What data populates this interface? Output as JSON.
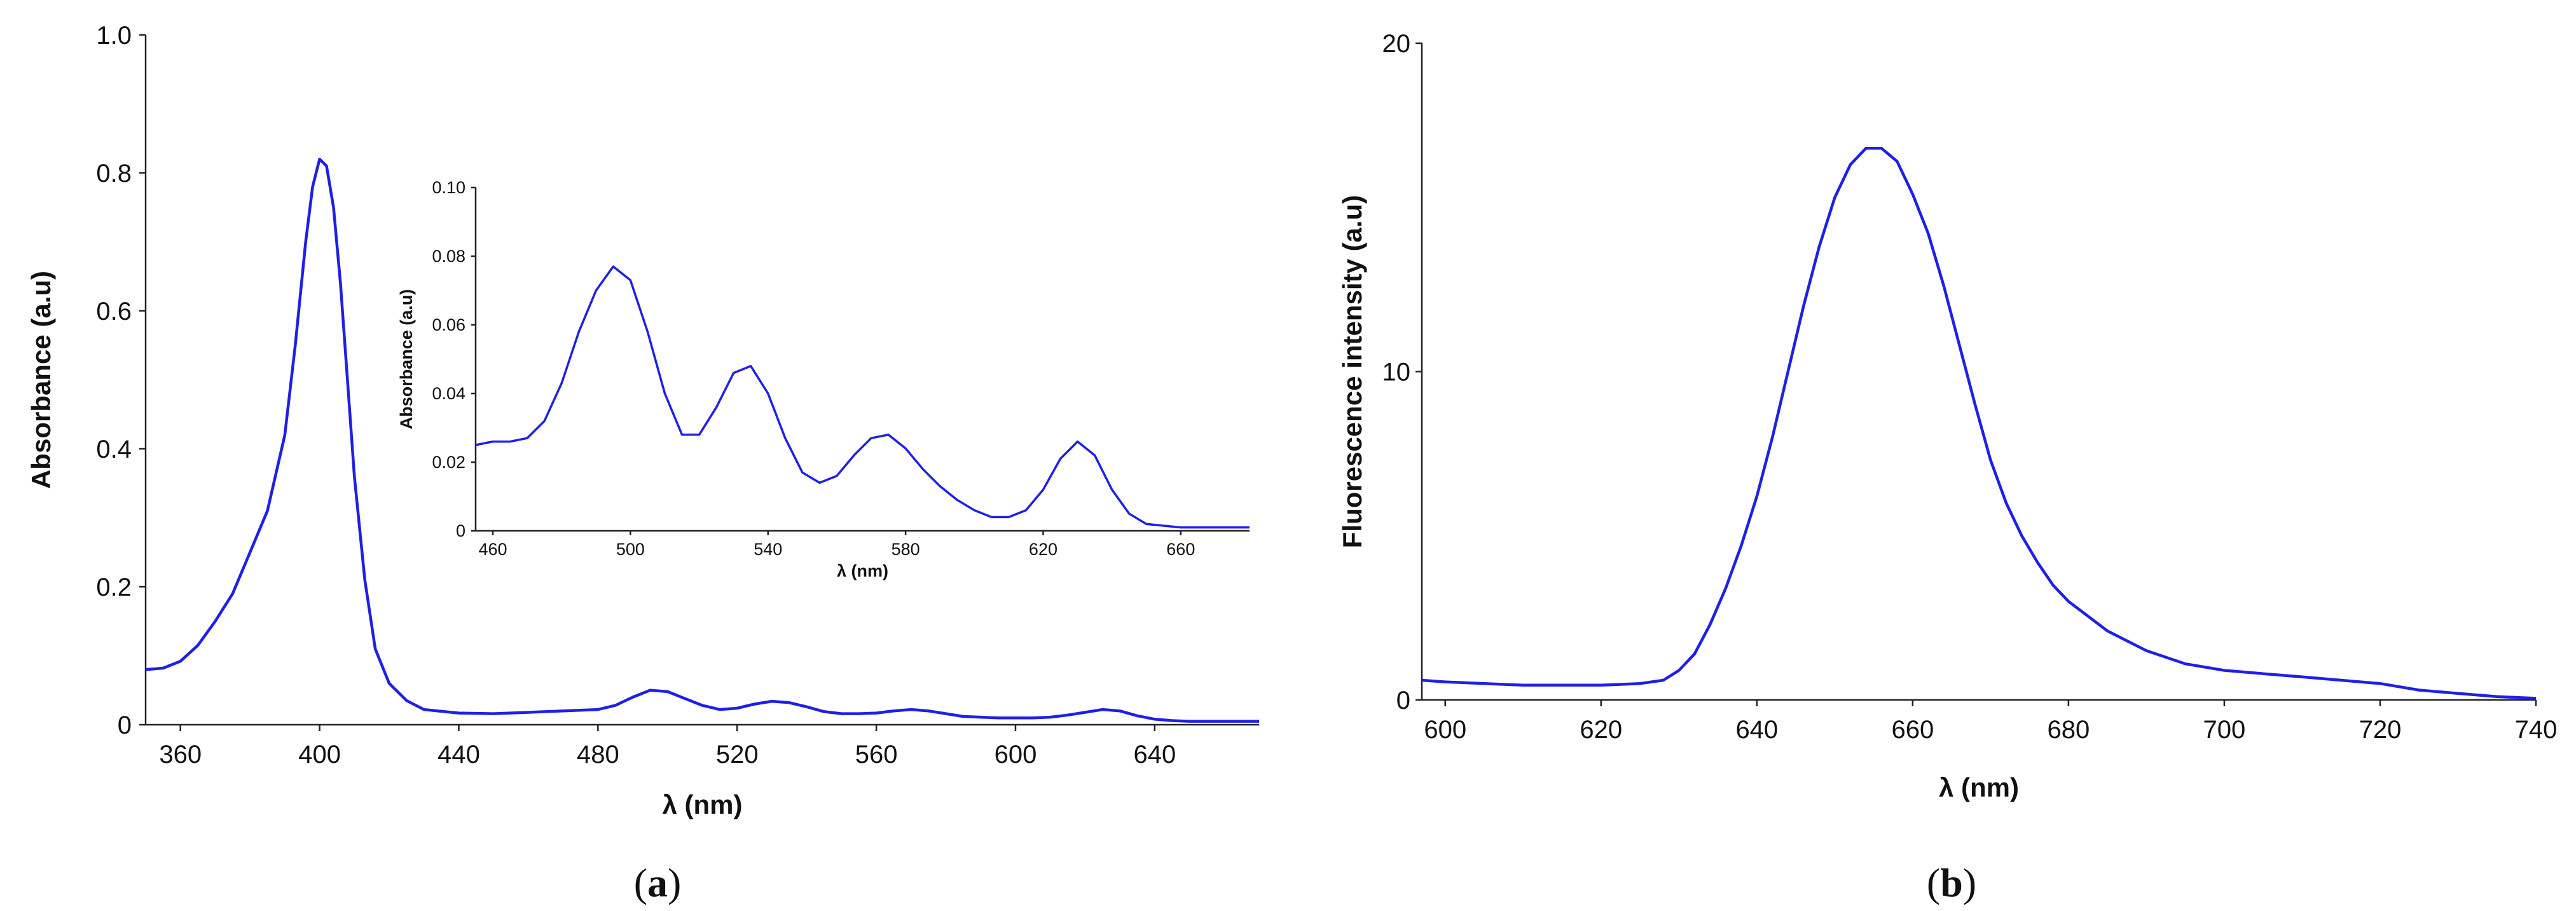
{
  "chart_data": [
    {
      "id": "a",
      "type": "line",
      "panel_label": {
        "open": "(",
        "letter": "a",
        "close": ")"
      },
      "xlabel": "λ (nm)",
      "ylabel": "Absorbance (a.u)",
      "xlim": [
        350,
        670
      ],
      "ylim": [
        0,
        1.0
      ],
      "xticks": [
        {
          "value": 360,
          "label": "360"
        },
        {
          "value": 400,
          "label": "400"
        },
        {
          "value": 440,
          "label": "440"
        },
        {
          "value": 480,
          "label": "480"
        },
        {
          "value": 520,
          "label": "520"
        },
        {
          "value": 560,
          "label": "560"
        },
        {
          "value": 600,
          "label": "600"
        },
        {
          "value": 640,
          "label": "640"
        }
      ],
      "yticks": [
        {
          "value": 0,
          "label": "0"
        },
        {
          "value": 0.2,
          "label": "0.2"
        },
        {
          "value": 0.4,
          "label": "0.4"
        },
        {
          "value": 0.6,
          "label": "0.6"
        },
        {
          "value": 0.8,
          "label": "0.8"
        },
        {
          "value": 1.0,
          "label": "1.0"
        }
      ],
      "series": [
        {
          "name": "absorbance",
          "color": "#1f1fe6",
          "x": [
            350,
            355,
            360,
            365,
            370,
            375,
            380,
            385,
            390,
            393,
            396,
            398,
            400,
            402,
            404,
            406,
            408,
            410,
            413,
            416,
            420,
            425,
            430,
            440,
            450,
            460,
            470,
            480,
            485,
            490,
            495,
            500,
            505,
            510,
            515,
            520,
            525,
            530,
            535,
            540,
            545,
            550,
            555,
            560,
            565,
            570,
            575,
            580,
            585,
            590,
            595,
            600,
            605,
            610,
            615,
            620,
            625,
            630,
            635,
            640,
            645,
            650,
            660,
            670
          ],
          "y": [
            0.08,
            0.082,
            0.092,
            0.115,
            0.15,
            0.19,
            0.25,
            0.31,
            0.42,
            0.55,
            0.7,
            0.78,
            0.82,
            0.81,
            0.75,
            0.64,
            0.5,
            0.36,
            0.21,
            0.11,
            0.06,
            0.035,
            0.022,
            0.017,
            0.016,
            0.018,
            0.02,
            0.022,
            0.028,
            0.04,
            0.05,
            0.048,
            0.038,
            0.028,
            0.022,
            0.024,
            0.03,
            0.034,
            0.032,
            0.026,
            0.019,
            0.016,
            0.016,
            0.017,
            0.02,
            0.022,
            0.02,
            0.016,
            0.012,
            0.011,
            0.01,
            0.01,
            0.01,
            0.011,
            0.014,
            0.018,
            0.022,
            0.02,
            0.013,
            0.008,
            0.006,
            0.005,
            0.005,
            0.005
          ]
        }
      ],
      "inset": {
        "xlabel": "λ (nm)",
        "ylabel": "Absorbance (a.u)",
        "xlim": [
          455,
          680
        ],
        "ylim": [
          0,
          0.1
        ],
        "xticks": [
          {
            "value": 460,
            "label": "460"
          },
          {
            "value": 500,
            "label": "500"
          },
          {
            "value": 540,
            "label": "540"
          },
          {
            "value": 580,
            "label": "580"
          },
          {
            "value": 620,
            "label": "620"
          },
          {
            "value": 660,
            "label": "660"
          }
        ],
        "yticks": [
          {
            "value": 0,
            "label": "0"
          },
          {
            "value": 0.02,
            "label": "0.02"
          },
          {
            "value": 0.04,
            "label": "0.04"
          },
          {
            "value": 0.06,
            "label": "0.06"
          },
          {
            "value": 0.08,
            "label": "0.08"
          },
          {
            "value": 0.1,
            "label": "0.10"
          }
        ],
        "series": [
          {
            "name": "absorbance-inset",
            "color": "#1f1fe6",
            "x": [
              455,
              460,
              465,
              470,
              475,
              480,
              485,
              490,
              495,
              500,
              505,
              510,
              515,
              520,
              525,
              530,
              535,
              540,
              545,
              550,
              555,
              560,
              565,
              570,
              575,
              580,
              585,
              590,
              595,
              600,
              605,
              610,
              615,
              620,
              625,
              630,
              635,
              640,
              645,
              650,
              660,
              670,
              680
            ],
            "y": [
              0.025,
              0.026,
              0.026,
              0.027,
              0.032,
              0.043,
              0.058,
              0.07,
              0.077,
              0.073,
              0.058,
              0.04,
              0.028,
              0.028,
              0.036,
              0.046,
              0.048,
              0.04,
              0.027,
              0.017,
              0.014,
              0.016,
              0.022,
              0.027,
              0.028,
              0.024,
              0.018,
              0.013,
              0.009,
              0.006,
              0.004,
              0.004,
              0.006,
              0.012,
              0.021,
              0.026,
              0.022,
              0.012,
              0.005,
              0.002,
              0.001,
              0.001,
              0.001
            ]
          }
        ]
      }
    },
    {
      "id": "b",
      "type": "line",
      "panel_label": {
        "open": "(",
        "letter": "b",
        "close": ")"
      },
      "xlabel": "λ (nm)",
      "ylabel": "Fluorescence intensity (a.u)",
      "xlim": [
        597,
        740
      ],
      "ylim": [
        0,
        20
      ],
      "xticks": [
        {
          "value": 600,
          "label": "600"
        },
        {
          "value": 620,
          "label": "620"
        },
        {
          "value": 640,
          "label": "640"
        },
        {
          "value": 660,
          "label": "660"
        },
        {
          "value": 680,
          "label": "680"
        },
        {
          "value": 700,
          "label": "700"
        },
        {
          "value": 720,
          "label": "720"
        },
        {
          "value": 740,
          "label": "740"
        }
      ],
      "yticks": [
        {
          "value": 0,
          "label": "0"
        },
        {
          "value": 10,
          "label": "10"
        },
        {
          "value": 20,
          "label": "20"
        }
      ],
      "series": [
        {
          "name": "fluorescence",
          "color": "#1f1fe6",
          "x": [
            597,
            600,
            605,
            610,
            615,
            620,
            625,
            628,
            630,
            632,
            634,
            636,
            638,
            640,
            642,
            644,
            646,
            648,
            650,
            652,
            654,
            656,
            658,
            660,
            662,
            664,
            666,
            668,
            670,
            672,
            674,
            676,
            678,
            680,
            685,
            690,
            695,
            700,
            705,
            710,
            715,
            720,
            725,
            730,
            735,
            740
          ],
          "y": [
            0.6,
            0.55,
            0.5,
            0.45,
            0.45,
            0.45,
            0.5,
            0.6,
            0.9,
            1.4,
            2.3,
            3.4,
            4.7,
            6.2,
            8.0,
            10.0,
            12.0,
            13.8,
            15.3,
            16.3,
            16.8,
            16.8,
            16.4,
            15.4,
            14.2,
            12.6,
            10.8,
            9.0,
            7.3,
            6.0,
            5.0,
            4.2,
            3.5,
            3.0,
            2.1,
            1.5,
            1.1,
            0.9,
            0.8,
            0.7,
            0.6,
            0.5,
            0.3,
            0.2,
            0.1,
            0.05
          ]
        }
      ]
    }
  ]
}
